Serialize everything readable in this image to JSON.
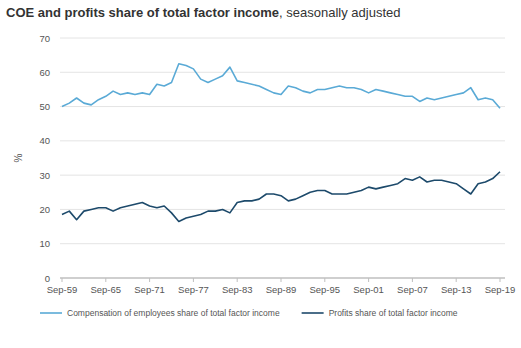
{
  "chart_data": {
    "type": "line",
    "title": "COE and profits share of total factor income",
    "subtitle": ", seasonally adjusted",
    "y_label": "%",
    "categories": [
      "Sep-59",
      null,
      null,
      null,
      null,
      null,
      "Sep-65",
      null,
      null,
      null,
      null,
      null,
      "Sep-71",
      null,
      null,
      null,
      null,
      null,
      "Sep-77",
      null,
      null,
      null,
      null,
      null,
      "Sep-83",
      null,
      null,
      null,
      null,
      null,
      "Sep-89",
      null,
      null,
      null,
      null,
      null,
      "Sep-95",
      null,
      null,
      null,
      null,
      null,
      "Sep-01",
      null,
      null,
      null,
      null,
      null,
      "Sep-07",
      null,
      null,
      null,
      null,
      null,
      "Sep-13",
      null,
      null,
      null,
      null,
      null,
      "Sep-19"
    ],
    "series": [
      {
        "name": "Compensation of employees share of total factor income",
        "color": "#5aaad6",
        "values": [
          50,
          51,
          52.5,
          51,
          50.5,
          52,
          53,
          54.5,
          53.5,
          54,
          53.5,
          54,
          53.5,
          56.5,
          56,
          57,
          62.5,
          62,
          61,
          58,
          57,
          58,
          59,
          61.5,
          57.5,
          57,
          56.5,
          56,
          55,
          54,
          53.5,
          56,
          55.5,
          54.5,
          54,
          55,
          55,
          55.5,
          56,
          55.5,
          55.5,
          55,
          54,
          55,
          54.5,
          54,
          53.5,
          53,
          53,
          51.5,
          52.5,
          52,
          52.5,
          53,
          53.5,
          54,
          55.5,
          52,
          52.5,
          52,
          49.5
        ]
      },
      {
        "name": "Profits share of total factor income",
        "color": "#1d4a6b",
        "values": [
          18.5,
          19.5,
          17,
          19.5,
          20,
          20.5,
          20.5,
          19.5,
          20.5,
          21,
          21.5,
          22,
          21,
          20.5,
          21,
          19,
          16.5,
          17.5,
          18,
          18.5,
          19.5,
          19.5,
          20,
          19,
          22,
          22.5,
          22.5,
          23,
          24.5,
          24.5,
          24,
          22.5,
          23,
          24,
          25,
          25.5,
          25.5,
          24.5,
          24.5,
          24.5,
          25,
          25.5,
          26.5,
          26,
          26.5,
          27,
          27.5,
          29,
          28.5,
          29.5,
          28,
          28.5,
          28.5,
          28,
          27.5,
          26,
          24.5,
          27.5,
          28,
          29,
          31
        ]
      }
    ],
    "ylim": [
      0,
      70
    ],
    "yticks": [
      0,
      10,
      20,
      30,
      40,
      50,
      60,
      70
    ],
    "grid": true,
    "legend": "bottom"
  }
}
